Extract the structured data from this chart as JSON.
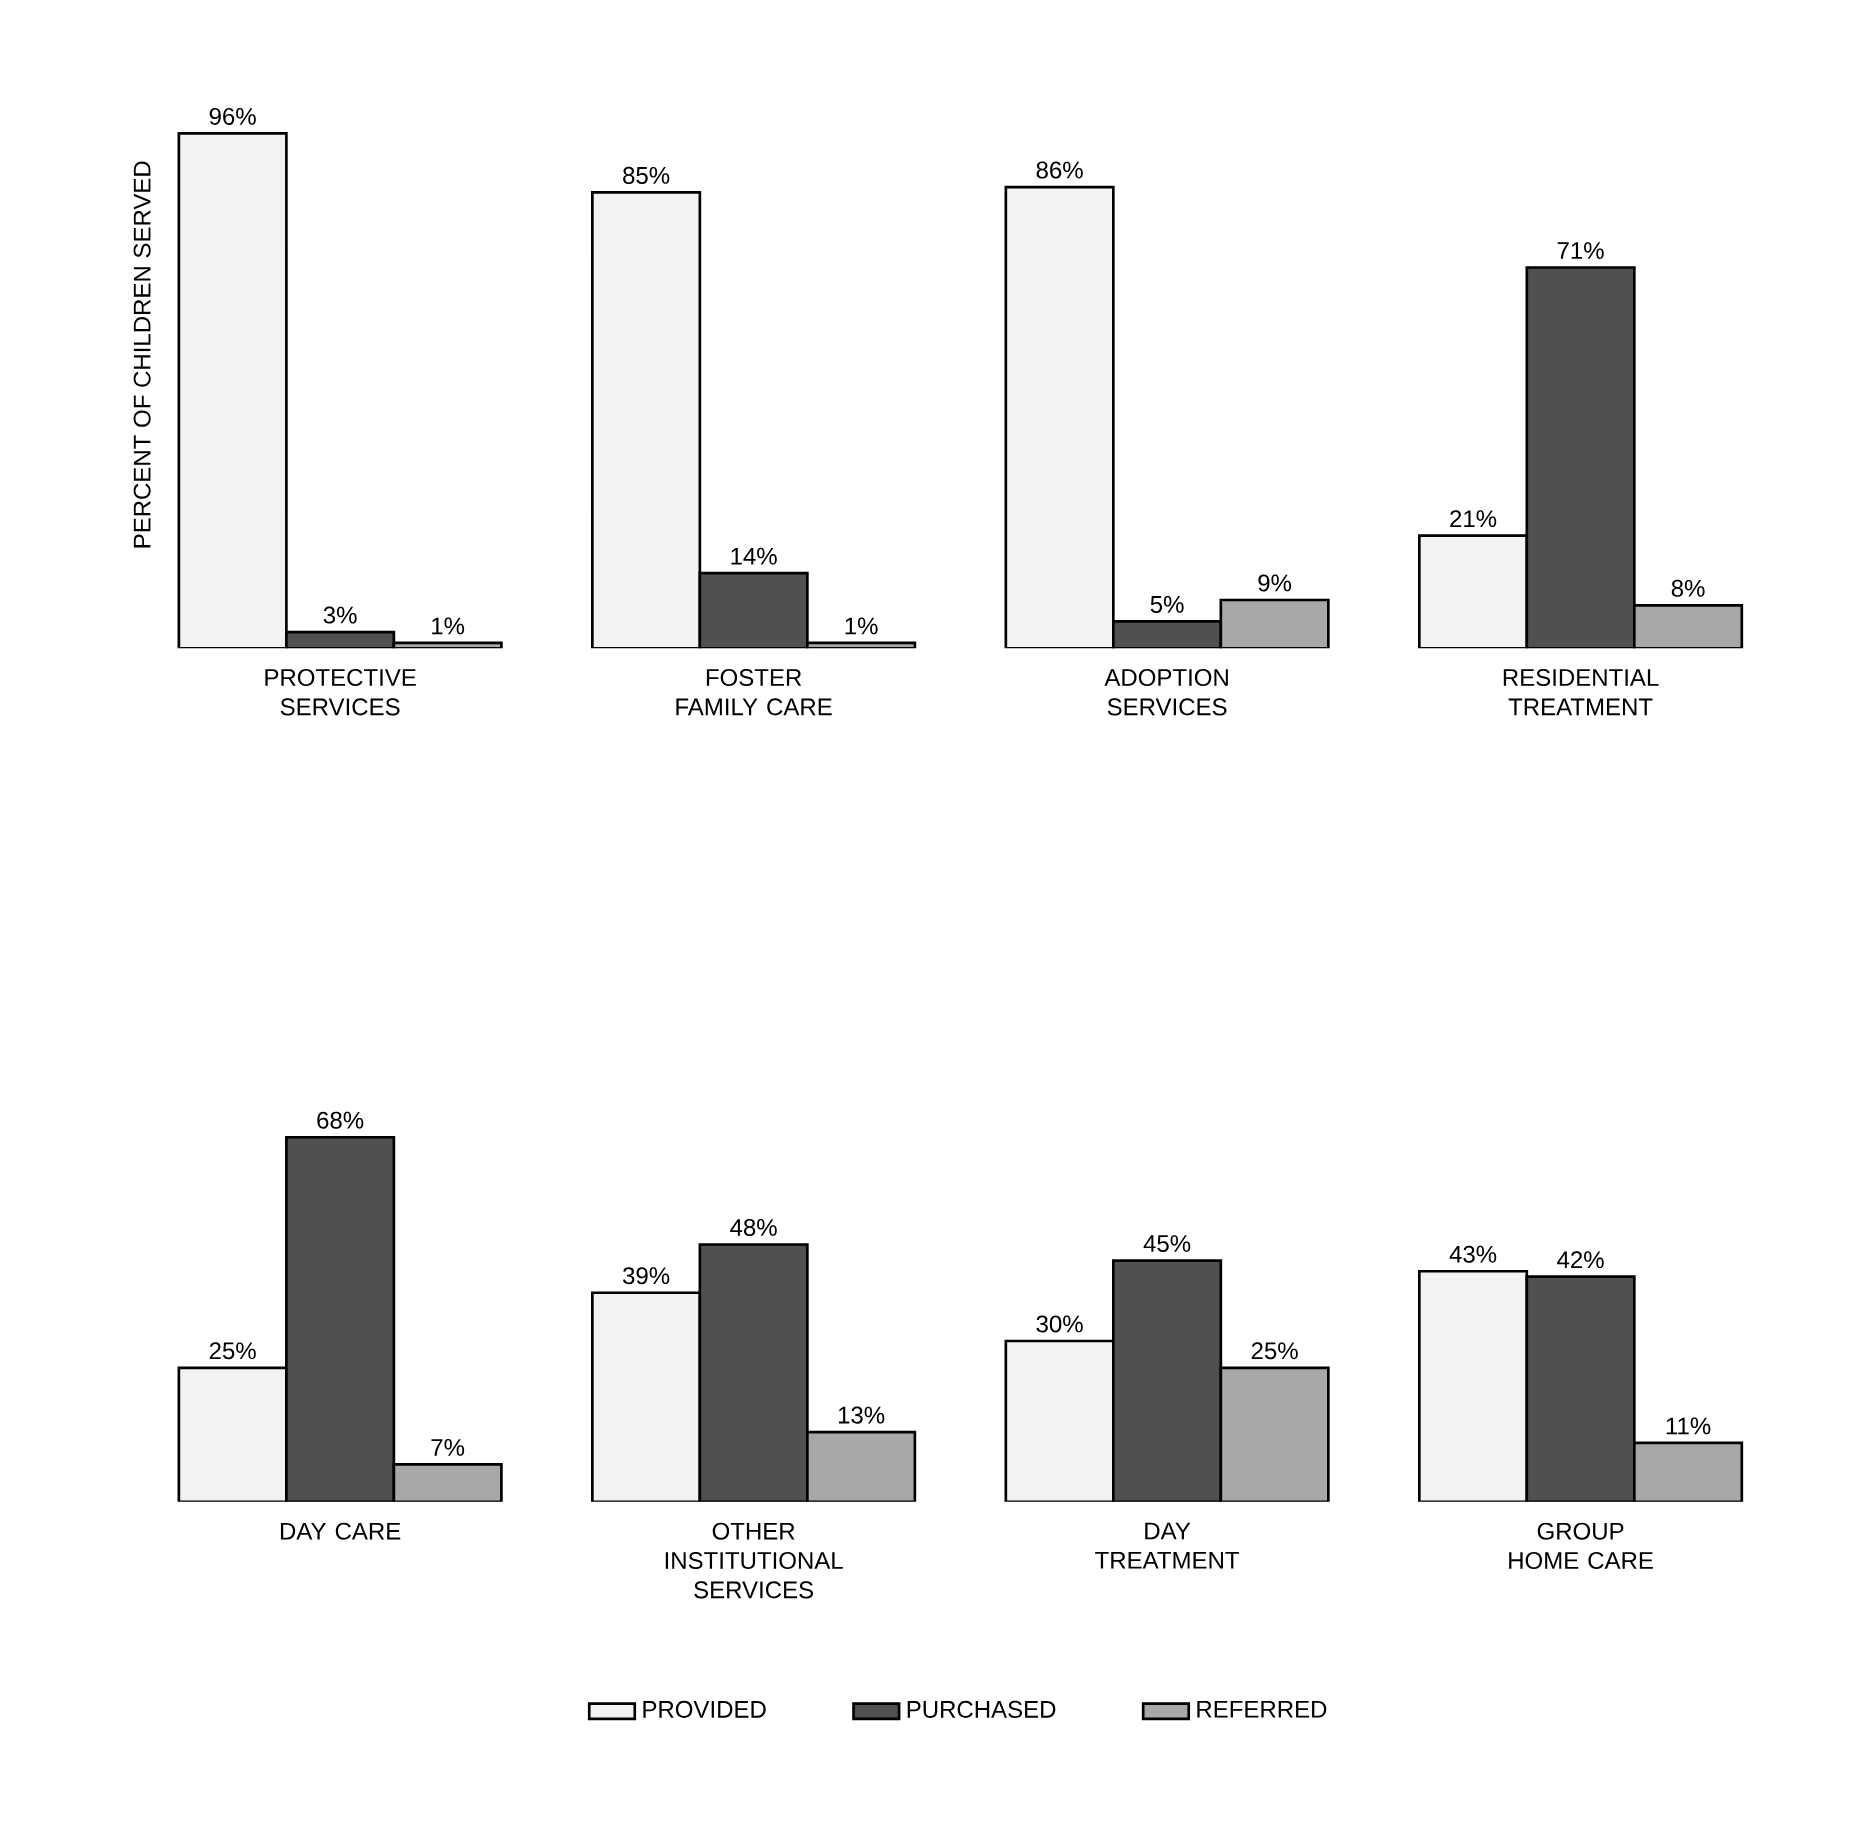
{
  "chart_data": [
    {
      "type": "bar",
      "ylabel": "PERCENT OF CHILDREN SERVED",
      "categories": [
        "PROTECTIVE SERVICES",
        "FOSTER FAMILY CARE",
        "ADOPTION SERVICES",
        "RESIDENTIAL TREATMENT"
      ],
      "series": [
        {
          "color": "#f2f2f2",
          "values": [
            96,
            85,
            86,
            21
          ],
          "value_labels": [
            "96%",
            "85%",
            "86%",
            "21%"
          ]
        },
        {
          "color": "#505050",
          "values": [
            3,
            14,
            5,
            71
          ],
          "value_labels": [
            "3%",
            "14%",
            "5%",
            "71%"
          ]
        },
        {
          "color": "#a8a8a8",
          "values": [
            1,
            1,
            9,
            8
          ],
          "value_labels": [
            "1%",
            "1%",
            "9%",
            "8%"
          ]
        }
      ]
    },
    {
      "type": "bar",
      "categories": [
        "DAY CARE",
        "OTHER INSTITUTIONAL SERVICES",
        "DAY TREATMENT",
        "GROUP HOME CARE"
      ],
      "legend": "bottom",
      "series": [
        {
          "name": "PROVIDED",
          "color": "#f2f2f2",
          "values": [
            25,
            39,
            30,
            43
          ],
          "value_labels": [
            "25%",
            "39%",
            "30%",
            "43%"
          ]
        },
        {
          "name": "PURCHASED",
          "color": "#505050",
          "values": [
            68,
            48,
            45,
            42
          ],
          "value_labels": [
            "68%",
            "48%",
            "45%",
            "42%"
          ]
        },
        {
          "name": "REFERRED",
          "color": "#a8a8a8",
          "values": [
            7,
            13,
            25,
            11
          ],
          "value_labels": [
            "7%",
            "13%",
            "25%",
            "11%"
          ]
        }
      ]
    }
  ]
}
